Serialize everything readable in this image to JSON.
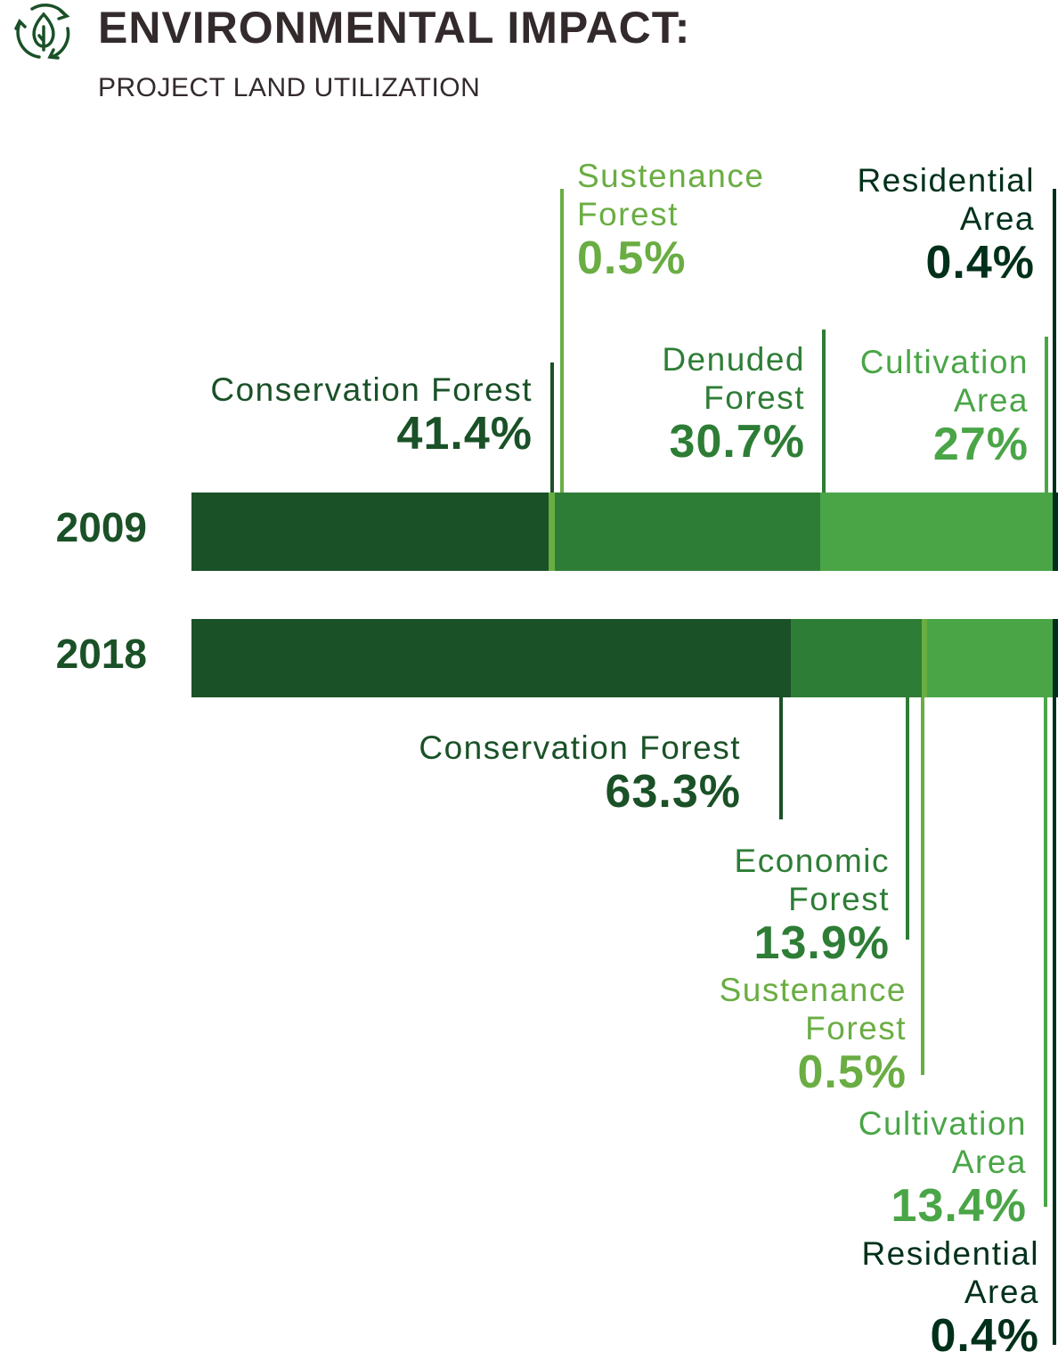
{
  "header": {
    "title": "ENVIRONMENTAL IMPACT:",
    "subtitle": "PROJECT LAND UTILIZATION",
    "icon": "recycle-leaf-icon"
  },
  "chart_data": {
    "type": "bar",
    "orientation": "horizontal",
    "stacked": true,
    "title": "ENVIRONMENTAL IMPACT:",
    "subtitle": "PROJECT LAND UTILIZATION",
    "unit": "%",
    "grid": false,
    "categories": [
      "2009",
      "2018"
    ],
    "rows": [
      {
        "year": "2009",
        "segments": [
          {
            "name": "Conservation Forest",
            "name_lines": [
              "Conservation Forest"
            ],
            "value": 41.4,
            "label": "41.4%",
            "color": "#1a5127"
          },
          {
            "name": "Sustenance Forest",
            "name_lines": [
              "Sustenance",
              "Forest"
            ],
            "value": 0.5,
            "label": "0.5%",
            "color": "#6aad43"
          },
          {
            "name": "Denuded Forest",
            "name_lines": [
              "Denuded",
              "Forest"
            ],
            "value": 30.7,
            "label": "30.7%",
            "color": "#2e7d36"
          },
          {
            "name": "Cultivation Area",
            "name_lines": [
              "Cultivation",
              "Area"
            ],
            "value": 27,
            "label": "27%",
            "color": "#4aa547"
          },
          {
            "name": "Residential Area",
            "name_lines": [
              "Residential",
              "Area"
            ],
            "value": 0.4,
            "label": "0.4%",
            "color": "#01301a"
          }
        ]
      },
      {
        "year": "2018",
        "segments": [
          {
            "name": "Conservation Forest",
            "name_lines": [
              "Conservation Forest"
            ],
            "value": 63.3,
            "label": "63.3%",
            "color": "#1a5127"
          },
          {
            "name": "Economic Forest",
            "name_lines": [
              "Economic",
              "Forest"
            ],
            "value": 13.9,
            "label": "13.9%",
            "color": "#2e7d36"
          },
          {
            "name": "Sustenance Forest",
            "name_lines": [
              "Sustenance",
              "Forest"
            ],
            "value": 0.5,
            "label": "0.5%",
            "color": "#6aad43"
          },
          {
            "name": "Cultivation Area",
            "name_lines": [
              "Cultivation",
              "Area"
            ],
            "value": 13.4,
            "label": "13.4%",
            "color": "#4aa547"
          },
          {
            "name": "Residential Area",
            "name_lines": [
              "Residential",
              "Area"
            ],
            "value": 0.4,
            "label": "0.4%",
            "color": "#01301a"
          }
        ]
      }
    ]
  }
}
